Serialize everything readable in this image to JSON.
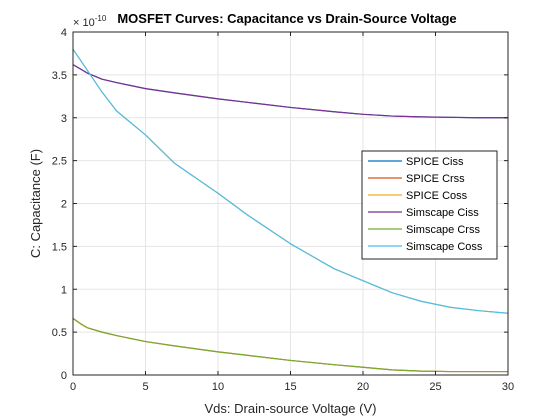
{
  "chart_data": {
    "type": "line",
    "title": "MOSFET Curves: Capacitance vs Drain-Source Voltage",
    "xlabel": "Vds: Drain-source Voltage (V)",
    "ylabel": "C: Capacitance (F)",
    "xlim": [
      0,
      30
    ],
    "ylim": [
      0,
      4
    ],
    "x_ticks": [
      "0",
      "5",
      "10",
      "15",
      "20",
      "25",
      "30"
    ],
    "y_ticks": [
      "0",
      "0.5",
      "1",
      "1.5",
      "2",
      "2.5",
      "3",
      "3.5",
      "4"
    ],
    "y_exponent_base": "× 10",
    "y_exponent_power": "-10",
    "grid": true,
    "legend_position": "right",
    "series": [
      {
        "name": "SPICE Ciss",
        "color": "#0072BD",
        "x": [
          0,
          1,
          2,
          3,
          5,
          7,
          10,
          12,
          15,
          18,
          20,
          22,
          24,
          26,
          28,
          30
        ],
        "y": [
          3.62,
          3.52,
          3.45,
          3.41,
          3.34,
          3.29,
          3.22,
          3.18,
          3.12,
          3.07,
          3.04,
          3.02,
          3.01,
          3.005,
          3.0,
          3.0
        ]
      },
      {
        "name": "SPICE Crss",
        "color": "#D95319",
        "x": [
          0,
          0.5,
          1,
          2,
          3,
          5,
          7,
          10,
          12,
          15,
          18,
          20,
          22,
          24,
          26,
          28,
          30
        ],
        "y": [
          0.66,
          0.6,
          0.55,
          0.5,
          0.46,
          0.39,
          0.34,
          0.27,
          0.23,
          0.17,
          0.12,
          0.09,
          0.06,
          0.045,
          0.04,
          0.04,
          0.04
        ]
      },
      {
        "name": "SPICE Coss",
        "color": "#EDB120",
        "x": [
          0,
          1,
          2,
          3,
          5,
          7,
          10,
          12,
          15,
          18,
          20,
          22,
          24,
          26,
          28,
          30
        ],
        "y": [
          3.8,
          3.55,
          3.3,
          3.08,
          2.8,
          2.47,
          2.12,
          1.87,
          1.53,
          1.24,
          1.1,
          0.96,
          0.86,
          0.79,
          0.75,
          0.72
        ]
      },
      {
        "name": "Simscape Ciss",
        "color": "#7E2F8E",
        "x": [
          0,
          1,
          2,
          3,
          5,
          7,
          10,
          12,
          15,
          18,
          20,
          22,
          24,
          26,
          28,
          30
        ],
        "y": [
          3.62,
          3.52,
          3.45,
          3.41,
          3.34,
          3.29,
          3.22,
          3.18,
          3.12,
          3.07,
          3.04,
          3.02,
          3.01,
          3.005,
          3.0,
          3.0
        ]
      },
      {
        "name": "Simscape Crss",
        "color": "#77AC30",
        "x": [
          0,
          0.5,
          1,
          2,
          3,
          5,
          7,
          10,
          12,
          15,
          18,
          20,
          22,
          24,
          26,
          28,
          30
        ],
        "y": [
          0.66,
          0.6,
          0.55,
          0.5,
          0.46,
          0.39,
          0.34,
          0.27,
          0.23,
          0.17,
          0.12,
          0.09,
          0.06,
          0.045,
          0.04,
          0.04,
          0.04
        ]
      },
      {
        "name": "Simscape Coss",
        "color": "#4DBEEE",
        "x": [
          0,
          1,
          2,
          3,
          5,
          7,
          10,
          12,
          15,
          18,
          20,
          22,
          24,
          26,
          28,
          30
        ],
        "y": [
          3.8,
          3.55,
          3.3,
          3.08,
          2.8,
          2.47,
          2.12,
          1.87,
          1.53,
          1.24,
          1.1,
          0.96,
          0.86,
          0.79,
          0.75,
          0.72
        ]
      }
    ]
  }
}
